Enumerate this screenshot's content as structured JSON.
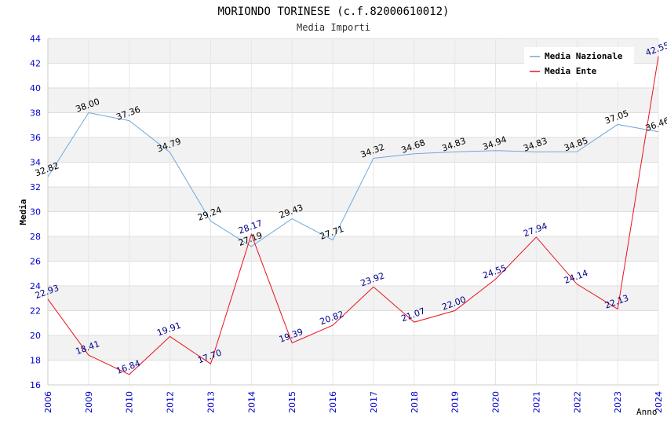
{
  "chart_data": {
    "type": "line",
    "title": "MORIONDO TORINESE (c.f.82000610012)",
    "subtitle": "Media Importi",
    "xlabel": "Anno",
    "ylabel": "Media",
    "ylim": [
      16,
      44
    ],
    "yticks": [
      "16",
      "18",
      "20",
      "22",
      "24",
      "26",
      "28",
      "30",
      "32",
      "34",
      "36",
      "38",
      "40",
      "42",
      "44"
    ],
    "categories": [
      "2006",
      "2009",
      "2010",
      "2012",
      "2013",
      "2014",
      "2015",
      "2016",
      "2017",
      "2018",
      "2019",
      "2020",
      "2021",
      "2022",
      "2023",
      "2024"
    ],
    "legend_position": "top-right",
    "series": [
      {
        "name": "Media Nazionale",
        "color": "#6fa8dc",
        "label_color": "#000000",
        "values": [
          32.82,
          38.0,
          37.36,
          34.79,
          29.24,
          27.19,
          29.43,
          27.71,
          34.32,
          34.68,
          34.83,
          34.94,
          34.83,
          34.85,
          37.05,
          36.46
        ],
        "labels": [
          "32.82",
          "38.00",
          "37.36",
          "34.79",
          "29.24",
          "27.19",
          "29.43",
          "27.71",
          "34.32",
          "34.68",
          "34.83",
          "34.94",
          "34.83",
          "34.85",
          "37.05",
          "36.46"
        ]
      },
      {
        "name": "Media Ente",
        "color": "#e8121b",
        "label_color": "#00008b",
        "values": [
          22.93,
          18.41,
          16.84,
          19.91,
          17.7,
          28.17,
          19.39,
          20.82,
          23.92,
          21.07,
          22.0,
          24.55,
          27.94,
          24.14,
          22.13,
          42.55
        ],
        "labels": [
          "22.93",
          "18.41",
          "16.84",
          "19.91",
          "17.70",
          "28.17",
          "19.39",
          "20.82",
          "23.92",
          "21.07",
          "22.00",
          "24.55",
          "27.94",
          "24.14",
          "22.13",
          "42.55"
        ]
      }
    ]
  }
}
